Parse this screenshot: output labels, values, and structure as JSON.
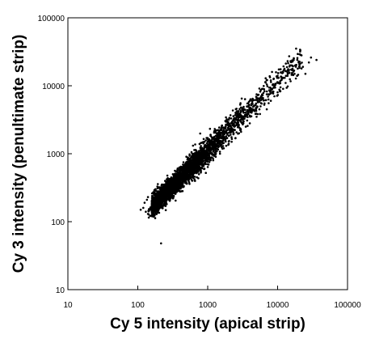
{
  "chart_data": {
    "type": "scatter",
    "title": "",
    "xlabel": "Cy 5 intensity (apical strip)",
    "ylabel": "Cy 3 intensity (penultimate strip)",
    "x_scale": "log",
    "y_scale": "log",
    "xlim": [
      10,
      100000
    ],
    "ylim": [
      10,
      100000
    ],
    "x_ticks": [
      "10",
      "100",
      "1000",
      "10000",
      "100000"
    ],
    "y_ticks": [
      "10",
      "100",
      "1000",
      "10000",
      "100000"
    ],
    "grid": false,
    "legend": "none",
    "marker_color": "#000000",
    "points": [
      [
        150,
        150
      ],
      [
        160,
        180
      ],
      [
        170,
        170
      ],
      [
        180,
        200
      ],
      [
        200,
        190
      ],
      [
        210,
        230
      ],
      [
        230,
        220
      ],
      [
        250,
        260
      ],
      [
        270,
        280
      ],
      [
        300,
        290
      ],
      [
        320,
        330
      ],
      [
        350,
        360
      ],
      [
        380,
        370
      ],
      [
        400,
        420
      ],
      [
        430,
        450
      ],
      [
        460,
        470
      ],
      [
        500,
        520
      ],
      [
        540,
        560
      ],
      [
        580,
        600
      ],
      [
        620,
        650
      ],
      [
        680,
        700
      ],
      [
        720,
        760
      ],
      [
        780,
        820
      ],
      [
        850,
        880
      ],
      [
        920,
        960
      ],
      [
        1000,
        1050
      ],
      [
        1100,
        1150
      ],
      [
        1200,
        1250
      ],
      [
        1350,
        1400
      ],
      [
        1500,
        1550
      ],
      [
        1700,
        1750
      ],
      [
        1900,
        2000
      ],
      [
        2100,
        2200
      ],
      [
        2400,
        2500
      ],
      [
        2700,
        2800
      ],
      [
        3000,
        3200
      ],
      [
        3400,
        3600
      ],
      [
        3800,
        4000
      ],
      [
        4300,
        4500
      ],
      [
        4800,
        5200
      ],
      [
        5500,
        5800
      ],
      [
        6200,
        6600
      ],
      [
        7000,
        7500
      ],
      [
        8000,
        8500
      ],
      [
        9000,
        9800
      ],
      [
        10000,
        11000
      ],
      [
        12000,
        13000
      ],
      [
        14000,
        15000
      ],
      [
        16000,
        17000
      ],
      [
        18000,
        20000
      ],
      [
        20000,
        22000
      ],
      [
        22000,
        28000
      ],
      [
        15000,
        20000
      ],
      [
        12000,
        16000
      ],
      [
        10000,
        14000
      ],
      [
        8000,
        12000
      ],
      [
        6000,
        9000
      ],
      [
        5000,
        7500
      ],
      [
        4000,
        6000
      ],
      [
        3000,
        4800
      ],
      [
        2500,
        4000
      ],
      [
        2000,
        3200
      ],
      [
        1600,
        2600
      ],
      [
        1300,
        2100
      ],
      [
        1000,
        1700
      ],
      [
        800,
        1300
      ],
      [
        600,
        1000
      ],
      [
        450,
        750
      ],
      [
        350,
        550
      ],
      [
        260,
        420
      ],
      [
        200,
        320
      ],
      [
        5000,
        3500
      ],
      [
        4000,
        2800
      ],
      [
        3000,
        2100
      ],
      [
        2500,
        1700
      ],
      [
        2000,
        1400
      ],
      [
        1500,
        1000
      ],
      [
        1200,
        800
      ],
      [
        900,
        600
      ],
      [
        700,
        450
      ],
      [
        550,
        360
      ],
      [
        420,
        280
      ],
      [
        320,
        220
      ],
      [
        250,
        170
      ],
      [
        8000,
        6000
      ],
      [
        7000,
        4500
      ],
      [
        10000,
        8000
      ],
      [
        12000,
        9000
      ],
      [
        3500,
        2500
      ],
      [
        2800,
        2000
      ],
      [
        130,
        140
      ],
      [
        125,
        190
      ],
      [
        140,
        130
      ],
      [
        120,
        160
      ],
      [
        135,
        210
      ],
      [
        110,
        150
      ],
      [
        180,
        140
      ],
      [
        220,
        170
      ],
      [
        300,
        240
      ],
      [
        400,
        330
      ],
      [
        36000,
        24000
      ],
      [
        22000,
        18000
      ],
      [
        28000,
        22000
      ],
      [
        25000,
        15000
      ],
      [
        19000,
        14000
      ],
      [
        17000,
        24000
      ],
      [
        23000,
        19000
      ],
      [
        30000,
        26000
      ],
      [
        215,
        48
      ],
      [
        600,
        400
      ],
      [
        750,
        500
      ],
      [
        1700,
        1200
      ],
      [
        2200,
        1500
      ],
      [
        5500,
        4500
      ],
      [
        6500,
        5500
      ],
      [
        9000,
        7000
      ],
      [
        11000,
        9500
      ],
      [
        13000,
        11000
      ],
      [
        15000,
        12500
      ],
      [
        450,
        650
      ],
      [
        550,
        800
      ],
      [
        700,
        1050
      ],
      [
        900,
        1300
      ],
      [
        1400,
        1900
      ],
      [
        1800,
        2500
      ],
      [
        2600,
        3500
      ],
      [
        3200,
        4200
      ],
      [
        160,
        260
      ],
      [
        140,
        230
      ],
      [
        180,
        300
      ],
      [
        900,
        1500
      ],
      [
        1100,
        1900
      ],
      [
        1300,
        900
      ],
      [
        1000,
        700
      ],
      [
        800,
        550
      ]
    ]
  }
}
